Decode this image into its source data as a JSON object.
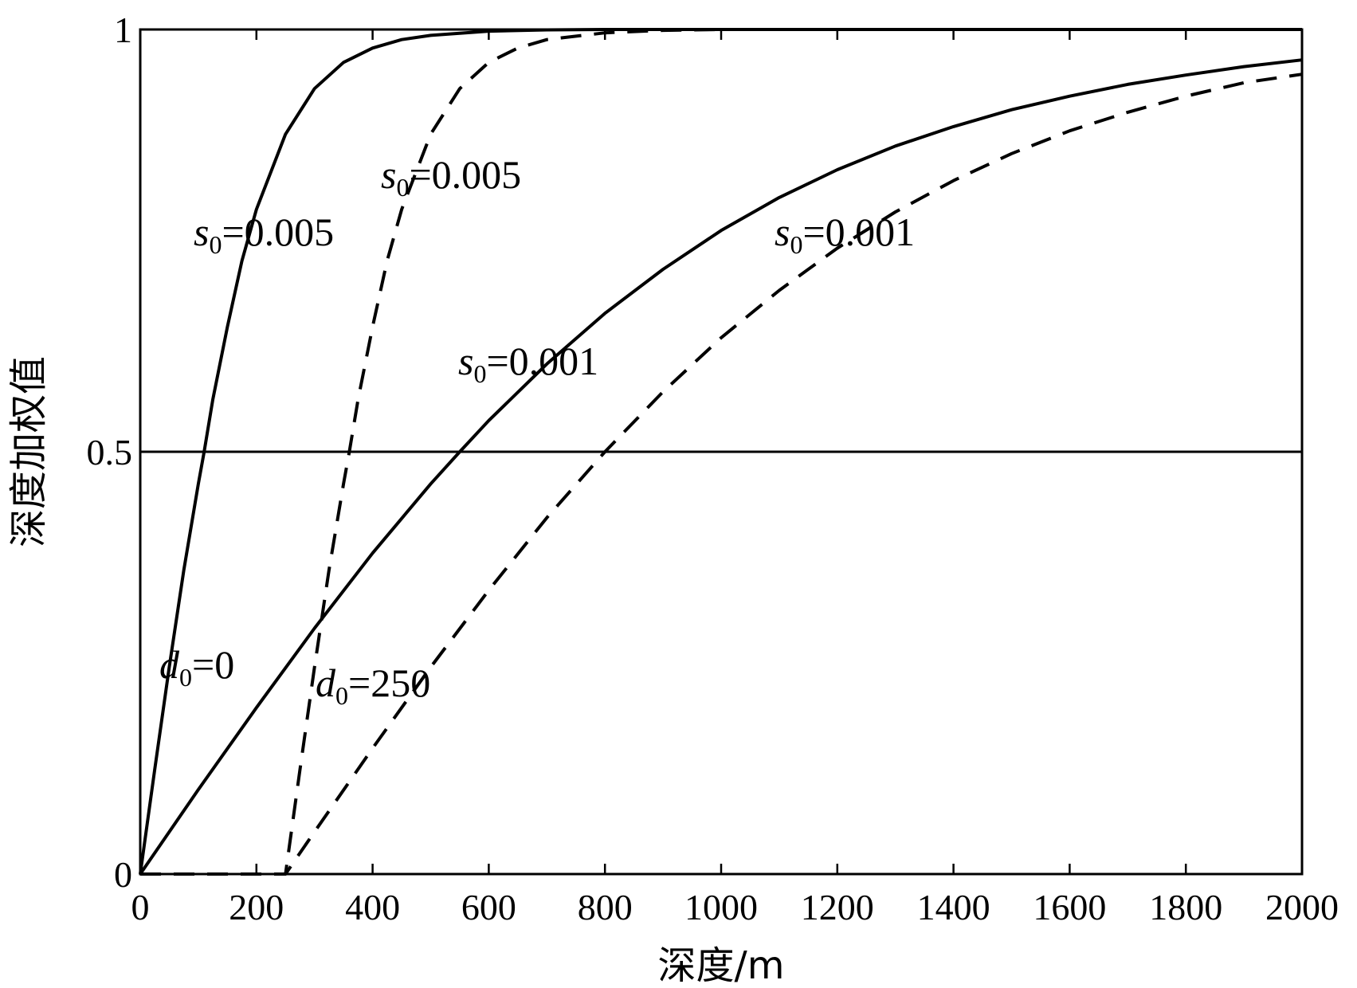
{
  "chart_data": {
    "type": "line",
    "title": "",
    "xlabel": "深度/m",
    "ylabel": "深度加权值",
    "xlim": [
      0,
      2000
    ],
    "ylim": [
      0,
      1
    ],
    "xticks": [
      0,
      200,
      400,
      600,
      800,
      1000,
      1200,
      1400,
      1600,
      1800,
      2000
    ],
    "yticks": [
      0,
      0.5,
      1
    ],
    "ytick_labels": [
      "0",
      "0.5",
      "1"
    ],
    "grid": false,
    "reference_lines": [
      {
        "y": 0.5
      }
    ],
    "series": [
      {
        "style": "solid",
        "params": {
          "d0": 0,
          "s0": 0.005
        },
        "x": [
          0,
          25,
          50,
          75,
          100,
          110,
          125,
          150,
          175,
          200,
          250,
          300,
          350,
          400,
          450,
          500,
          600,
          700,
          800,
          900,
          1000,
          1200,
          1500,
          2000
        ],
        "y": [
          0,
          0.124,
          0.245,
          0.36,
          0.462,
          0.5,
          0.562,
          0.648,
          0.726,
          0.787,
          0.876,
          0.93,
          0.961,
          0.978,
          0.988,
          0.993,
          0.998,
          0.9995,
          1.0,
          1.0,
          1.0,
          1.0,
          1.0,
          1.0
        ]
      },
      {
        "style": "dashed",
        "params": {
          "d0": 250,
          "s0": 0.005
        },
        "x": [
          0,
          250,
          275,
          300,
          325,
          350,
          360,
          375,
          400,
          425,
          450,
          500,
          550,
          600,
          650,
          700,
          800,
          900,
          1000,
          1200,
          1500,
          2000
        ],
        "y": [
          0,
          0,
          0.124,
          0.245,
          0.36,
          0.462,
          0.5,
          0.562,
          0.648,
          0.726,
          0.787,
          0.876,
          0.93,
          0.961,
          0.978,
          0.988,
          0.996,
          0.999,
          1.0,
          1.0,
          1.0,
          1.0
        ]
      },
      {
        "style": "solid",
        "params": {
          "d0": 0,
          "s0": 0.001
        },
        "x": [
          0,
          100,
          200,
          300,
          400,
          500,
          550,
          600,
          700,
          800,
          900,
          1000,
          1100,
          1200,
          1300,
          1400,
          1500,
          1600,
          1700,
          1800,
          1900,
          2000
        ],
        "y": [
          0,
          0.1,
          0.197,
          0.291,
          0.38,
          0.462,
          0.5,
          0.537,
          0.604,
          0.664,
          0.716,
          0.762,
          0.801,
          0.834,
          0.862,
          0.885,
          0.905,
          0.921,
          0.935,
          0.946,
          0.956,
          0.964
        ]
      },
      {
        "style": "dashed",
        "params": {
          "d0": 250,
          "s0": 0.001
        },
        "x": [
          0,
          250,
          300,
          400,
          500,
          600,
          700,
          800,
          900,
          1000,
          1100,
          1200,
          1300,
          1400,
          1500,
          1600,
          1700,
          1800,
          1900,
          2000
        ],
        "y": [
          0,
          0,
          0.05,
          0.149,
          0.245,
          0.336,
          0.422,
          0.5,
          0.571,
          0.635,
          0.691,
          0.741,
          0.784,
          0.821,
          0.853,
          0.88,
          0.902,
          0.921,
          0.937,
          0.947
        ]
      }
    ],
    "annotations": [
      {
        "var": "s",
        "sub": "0",
        "text": "=0.005"
      },
      {
        "var": "s",
        "sub": "0",
        "text": "=0.005"
      },
      {
        "var": "s",
        "sub": "0",
        "text": "=0.001"
      },
      {
        "var": "s",
        "sub": "0",
        "text": "=0.001"
      },
      {
        "var": "d",
        "sub": "0",
        "text": "=0"
      },
      {
        "var": "d",
        "sub": "0",
        "text": "=250"
      }
    ]
  }
}
